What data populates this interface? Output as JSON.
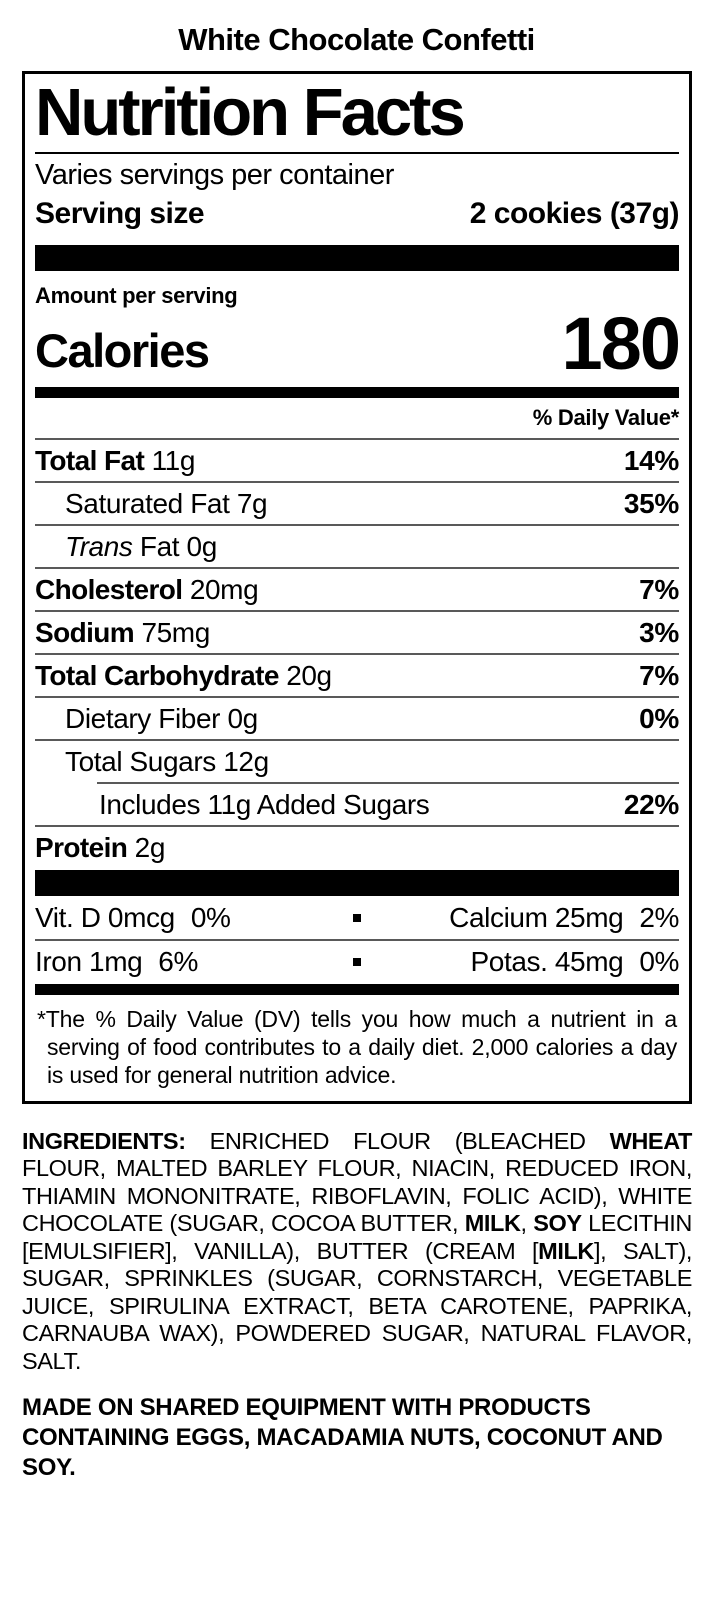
{
  "page_title": "White Chocolate Confetti",
  "colors": {
    "text": "#000000",
    "hairline": "#595959",
    "bar": "#000000",
    "background": "#ffffff"
  },
  "label": {
    "title": "Nutrition Facts",
    "servings_per_container": "Varies servings per container",
    "serving_size_label": "Serving size",
    "serving_size_value": "2 cookies (37g)",
    "amount_per_serving": "Amount per serving",
    "calories_label": "Calories",
    "calories_value": "180",
    "daily_value_header": "% Daily Value*",
    "nutrients": [
      {
        "segments": [
          {
            "t": "Total Fat",
            "b": true
          }
        ],
        "amount": "11g",
        "dv": "14%",
        "indent": 0,
        "sep": "full"
      },
      {
        "segments": [
          {
            "t": "Saturated Fat"
          }
        ],
        "amount": "7g",
        "dv": "35%",
        "indent": 1,
        "sep": "full"
      },
      {
        "segments": [
          {
            "t": "Trans",
            "i": true
          },
          {
            "t": " Fat"
          }
        ],
        "amount": "0g",
        "dv": "",
        "indent": 1,
        "sep": "full"
      },
      {
        "segments": [
          {
            "t": "Cholesterol",
            "b": true
          }
        ],
        "amount": "20mg",
        "dv": "7%",
        "indent": 0,
        "sep": "full"
      },
      {
        "segments": [
          {
            "t": "Sodium",
            "b": true
          }
        ],
        "amount": "75mg",
        "dv": "3%",
        "indent": 0,
        "sep": "full"
      },
      {
        "segments": [
          {
            "t": "Total Carbohydrate",
            "b": true
          }
        ],
        "amount": "20g",
        "dv": "7%",
        "indent": 0,
        "sep": "full"
      },
      {
        "segments": [
          {
            "t": "Dietary Fiber"
          }
        ],
        "amount": "0g",
        "dv": "0%",
        "indent": 1,
        "sep": "full"
      },
      {
        "segments": [
          {
            "t": "Total Sugars"
          }
        ],
        "amount": "12g",
        "dv": "",
        "indent": 1,
        "sep": "full"
      },
      {
        "segments": [
          {
            "t": "Includes 11g Added Sugars"
          }
        ],
        "amount": "",
        "dv": "22%",
        "indent": 2,
        "sep": "indent"
      },
      {
        "segments": [
          {
            "t": "Protein",
            "b": true
          }
        ],
        "amount": "2g",
        "dv": "",
        "indent": 0,
        "sep": "full"
      }
    ],
    "vitamins": [
      {
        "left": "Vit. D 0mcg",
        "left_dv": "0%",
        "right": "Calcium 25mg",
        "right_dv": "2%"
      },
      {
        "left": "Iron 1mg",
        "left_dv": "6%",
        "right": "Potas. 45mg",
        "right_dv": "0%"
      }
    ],
    "footnote": "*The % Daily Value (DV) tells you how much a nutrient in a serving of food contributes to a daily diet. 2,000 calories a day is used for general nutrition advice."
  },
  "ingredients_segments": [
    {
      "t": "INGREDIENTS:",
      "b": true
    },
    {
      "t": " ENRICHED FLOUR (BLEACHED "
    },
    {
      "t": "WHEAT",
      "b": true
    },
    {
      "t": " FLOUR, MALTED BARLEY FLOUR, NIACIN, REDUCED IRON, THIAMIN MONONITRATE, RIBOFLAVIN, FOLIC ACID), WHITE CHOCOLATE (SUGAR, COCOA BUTTER, "
    },
    {
      "t": "MILK",
      "b": true
    },
    {
      "t": ", "
    },
    {
      "t": "SOY",
      "b": true
    },
    {
      "t": " LECITHIN [EMULSIFIER], VANILLA), BUTTER (CREAM ["
    },
    {
      "t": "MILK",
      "b": true
    },
    {
      "t": "], SALT), SUGAR, SPRINKLES (SUGAR, CORNSTARCH, VEGETABLE JUICE, SPIRULINA EXTRACT, BETA CAROTENE, PAPRIKA, CARNAUBA WAX), POWDERED SUGAR, NATURAL FLAVOR, SALT."
    }
  ],
  "allergen_statement": "MADE ON SHARED EQUIPMENT WITH PRODUCTS CONTAINING EGGS, MACADAMIA NUTS, COCONUT AND SOY."
}
